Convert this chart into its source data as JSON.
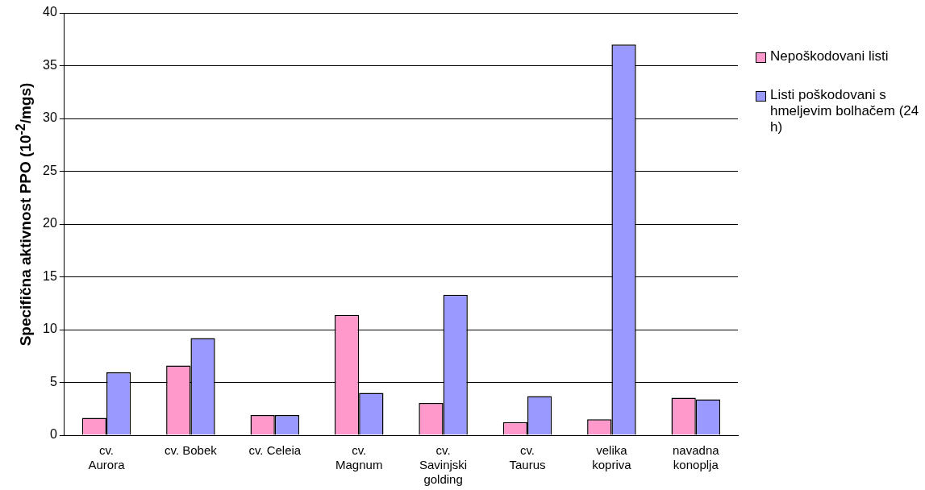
{
  "chart_data": {
    "type": "bar",
    "ylabel": "Specifična aktivnost PPO (10$^{-2}$/mgs)",
    "categories": [
      "cv.\nAurora",
      "cv. Bobek",
      "cv. Celeia",
      "cv.\nMagnum",
      "cv.\nSavinjski\ngolding",
      "cv.\nTaurus",
      "velika\nkopriva",
      "navadna\nkonoplja"
    ],
    "series": [
      {
        "name": "Nepoškodovani listi",
        "color": "#ff99cc",
        "values": [
          1.65,
          6.6,
          1.9,
          11.4,
          3.05,
          1.25,
          1.5,
          3.55
        ]
      },
      {
        "name": "Listi poškodovani s hmeljevim bolhačem (24 h)",
        "color": "#9999ff",
        "values": [
          5.95,
          9.2,
          1.9,
          4.0,
          13.3,
          3.7,
          37.0,
          3.4
        ]
      }
    ],
    "ylim": [
      0,
      40
    ],
    "yticks": [
      0,
      5,
      10,
      15,
      20,
      25,
      30,
      35,
      40
    ],
    "grid": "y",
    "legend": "right"
  }
}
